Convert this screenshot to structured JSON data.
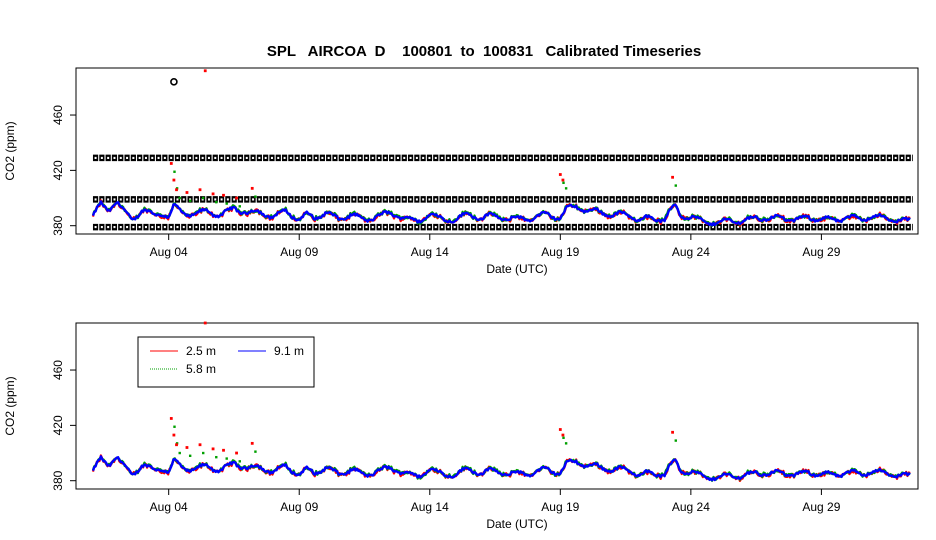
{
  "title": "SPL   AIRCOA  D    100801  to  100831   Calibrated Timeseries",
  "colors": {
    "h25": "#ff0000",
    "h58": "#00a000",
    "h91": "#0000ff",
    "cal": "#000000",
    "axis": "#000000"
  },
  "chart_data": [
    {
      "type": "line",
      "id": "top",
      "title": "SPL   AIRCOA  D    100801  to  100831   Calibrated Timeseries",
      "xlabel": "Date (UTC)",
      "ylabel": "CO2 (ppm)",
      "xlim": [
        0.45,
        32.7
      ],
      "ylim": [
        374,
        494
      ],
      "x_ticks": [
        4,
        9,
        14,
        19,
        24,
        29
      ],
      "x_tick_labels": [
        "Aug 04",
        "Aug 09",
        "Aug 14",
        "Aug 19",
        "Aug 24",
        "Aug 29"
      ],
      "y_ticks": [
        380,
        420,
        460
      ],
      "y_tick_labels": [
        "380",
        "420",
        "460"
      ],
      "calibration_levels": [
        379,
        399,
        429
      ],
      "calibration_x_range": [
        1.1,
        32.5
      ],
      "outliers": [
        {
          "series": "cal",
          "x": 4.2,
          "y": 484
        },
        {
          "series": "2.5 m",
          "x": 5.4,
          "y": 492
        }
      ],
      "series": [
        {
          "name": "2.5 m",
          "color": "#ff0000"
        },
        {
          "name": "5.8 m",
          "color": "#00a000"
        },
        {
          "name": "9.1 m",
          "color": "#0000ff"
        }
      ]
    },
    {
      "type": "line",
      "id": "bottom",
      "xlabel": "Date (UTC)",
      "ylabel": "CO2 (ppm)",
      "xlim": [
        0.45,
        32.7
      ],
      "ylim": [
        374,
        494
      ],
      "x_ticks": [
        4,
        9,
        14,
        19,
        24,
        29
      ],
      "x_tick_labels": [
        "Aug 04",
        "Aug 09",
        "Aug 14",
        "Aug 19",
        "Aug 24",
        "Aug 29"
      ],
      "y_ticks": [
        380,
        420,
        460
      ],
      "y_tick_labels": [
        "380",
        "420",
        "460"
      ],
      "outliers": [
        {
          "series": "2.5 m",
          "x": 5.4,
          "y": 494
        }
      ],
      "legend": {
        "position": "top-left",
        "entries": [
          {
            "label": "2.5 m",
            "color": "#ff0000",
            "style": "solid"
          },
          {
            "label": "5.8 m",
            "color": "#00a000",
            "style": "dotted"
          },
          {
            "label": "9.1 m",
            "color": "#0000ff",
            "style": "solid"
          }
        ]
      },
      "series": [
        {
          "name": "2.5 m",
          "color": "#ff0000"
        },
        {
          "name": "5.8 m",
          "color": "#00a000"
        },
        {
          "name": "9.1 m",
          "color": "#0000ff"
        }
      ]
    }
  ],
  "series_profile": {
    "x": [
      1.1,
      1.4,
      1.7,
      2.0,
      2.3,
      2.6,
      3.0,
      3.4,
      3.8,
      4.0,
      4.2,
      4.6,
      5.0,
      5.5,
      6.0,
      6.5,
      7.0,
      7.5,
      8.0,
      8.5,
      9.0,
      9.3,
      9.6,
      10.0,
      10.5,
      11.0,
      11.5,
      12.0,
      12.5,
      13.0,
      13.5,
      14.0,
      14.5,
      15.0,
      15.5,
      16.0,
      16.5,
      17.0,
      17.5,
      18.0,
      18.5,
      19.0,
      19.3,
      19.6,
      20.0,
      20.5,
      21.0,
      21.5,
      22.0,
      22.5,
      23.0,
      23.2,
      23.4,
      23.6,
      24.0,
      24.5,
      25.0,
      25.5,
      26.0,
      26.5,
      27.0,
      27.5,
      28.0,
      28.5,
      29.0,
      29.5,
      30.0,
      30.5,
      31.0,
      31.5,
      32.0,
      32.4
    ],
    "y": [
      386,
      396,
      392,
      397,
      390,
      385,
      391,
      388,
      389,
      386,
      394,
      389,
      388,
      391,
      387,
      393,
      389,
      390,
      386,
      391,
      384,
      388,
      386,
      389,
      385,
      388,
      384,
      387,
      389,
      386,
      383,
      388,
      385,
      384,
      389,
      385,
      388,
      384,
      386,
      385,
      389,
      385,
      393,
      395,
      390,
      391,
      387,
      389,
      384,
      386,
      384,
      390,
      395,
      388,
      386,
      383,
      382,
      384,
      383,
      386,
      385,
      386,
      384,
      386,
      385,
      384,
      386,
      385,
      387,
      385,
      384,
      383
    ]
  },
  "spikes_2p5m": {
    "x": [
      4.1,
      4.2,
      4.3,
      4.7,
      5.2,
      5.7,
      6.1,
      6.6,
      7.2,
      19.0,
      19.1,
      23.3
    ],
    "y": [
      425,
      413,
      406,
      404,
      406,
      403,
      402,
      400,
      407,
      417,
      413,
      415
    ]
  }
}
